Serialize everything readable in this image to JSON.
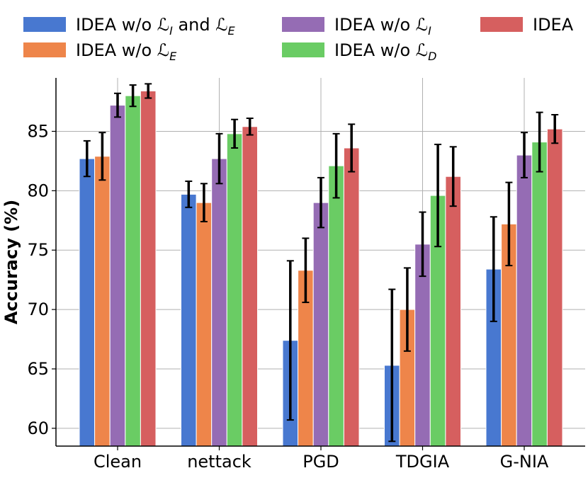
{
  "chart_data": {
    "type": "bar",
    "ylabel": "Accuracy (%)",
    "xlabel": "",
    "ylim": [
      58.5,
      89.5
    ],
    "yticks": [
      60,
      65,
      70,
      75,
      80,
      85
    ],
    "grid": true,
    "legend_position": "top",
    "categories": [
      "Clean",
      "nettack",
      "PGD",
      "TDGIA",
      "G-NIA"
    ],
    "series": [
      {
        "name": "IDEA w/o ℒI and ℒE",
        "name_parts": [
          [
            "IDEA w/o ",
            ""
          ],
          [
            "ℒ",
            "I"
          ],
          [
            " and ",
            ""
          ],
          [
            "ℒ",
            "E"
          ]
        ],
        "color": "#4878d0",
        "values": [
          82.7,
          79.7,
          67.4,
          65.3,
          73.4
        ],
        "errors": [
          1.5,
          1.1,
          6.7,
          6.4,
          4.4
        ]
      },
      {
        "name": "IDEA w/o ℒE",
        "name_parts": [
          [
            "IDEA w/o ",
            ""
          ],
          [
            "ℒ",
            "E"
          ]
        ],
        "color": "#ee854a",
        "values": [
          82.9,
          79.0,
          73.3,
          70.0,
          77.2
        ],
        "errors": [
          2.0,
          1.6,
          2.7,
          3.5,
          3.5
        ]
      },
      {
        "name": "IDEA w/o ℒI",
        "name_parts": [
          [
            "IDEA w/o ",
            ""
          ],
          [
            "ℒ",
            "I"
          ]
        ],
        "color": "#956cb4",
        "values": [
          87.2,
          82.7,
          79.0,
          75.5,
          83.0
        ],
        "errors": [
          1.0,
          2.1,
          2.1,
          2.7,
          1.9
        ]
      },
      {
        "name": "IDEA w/o ℒD",
        "name_parts": [
          [
            "IDEA w/o ",
            ""
          ],
          [
            "ℒ",
            "D"
          ]
        ],
        "color": "#6acc64",
        "values": [
          88.0,
          84.8,
          82.1,
          79.6,
          84.1
        ],
        "errors": [
          0.9,
          1.2,
          2.7,
          4.3,
          2.5
        ]
      },
      {
        "name": "IDEA",
        "name_parts": [
          [
            "IDEA",
            ""
          ]
        ],
        "color": "#d65f5f",
        "values": [
          88.4,
          85.4,
          83.6,
          81.2,
          85.2
        ],
        "errors": [
          0.6,
          0.7,
          2.0,
          2.5,
          1.2
        ]
      }
    ]
  }
}
